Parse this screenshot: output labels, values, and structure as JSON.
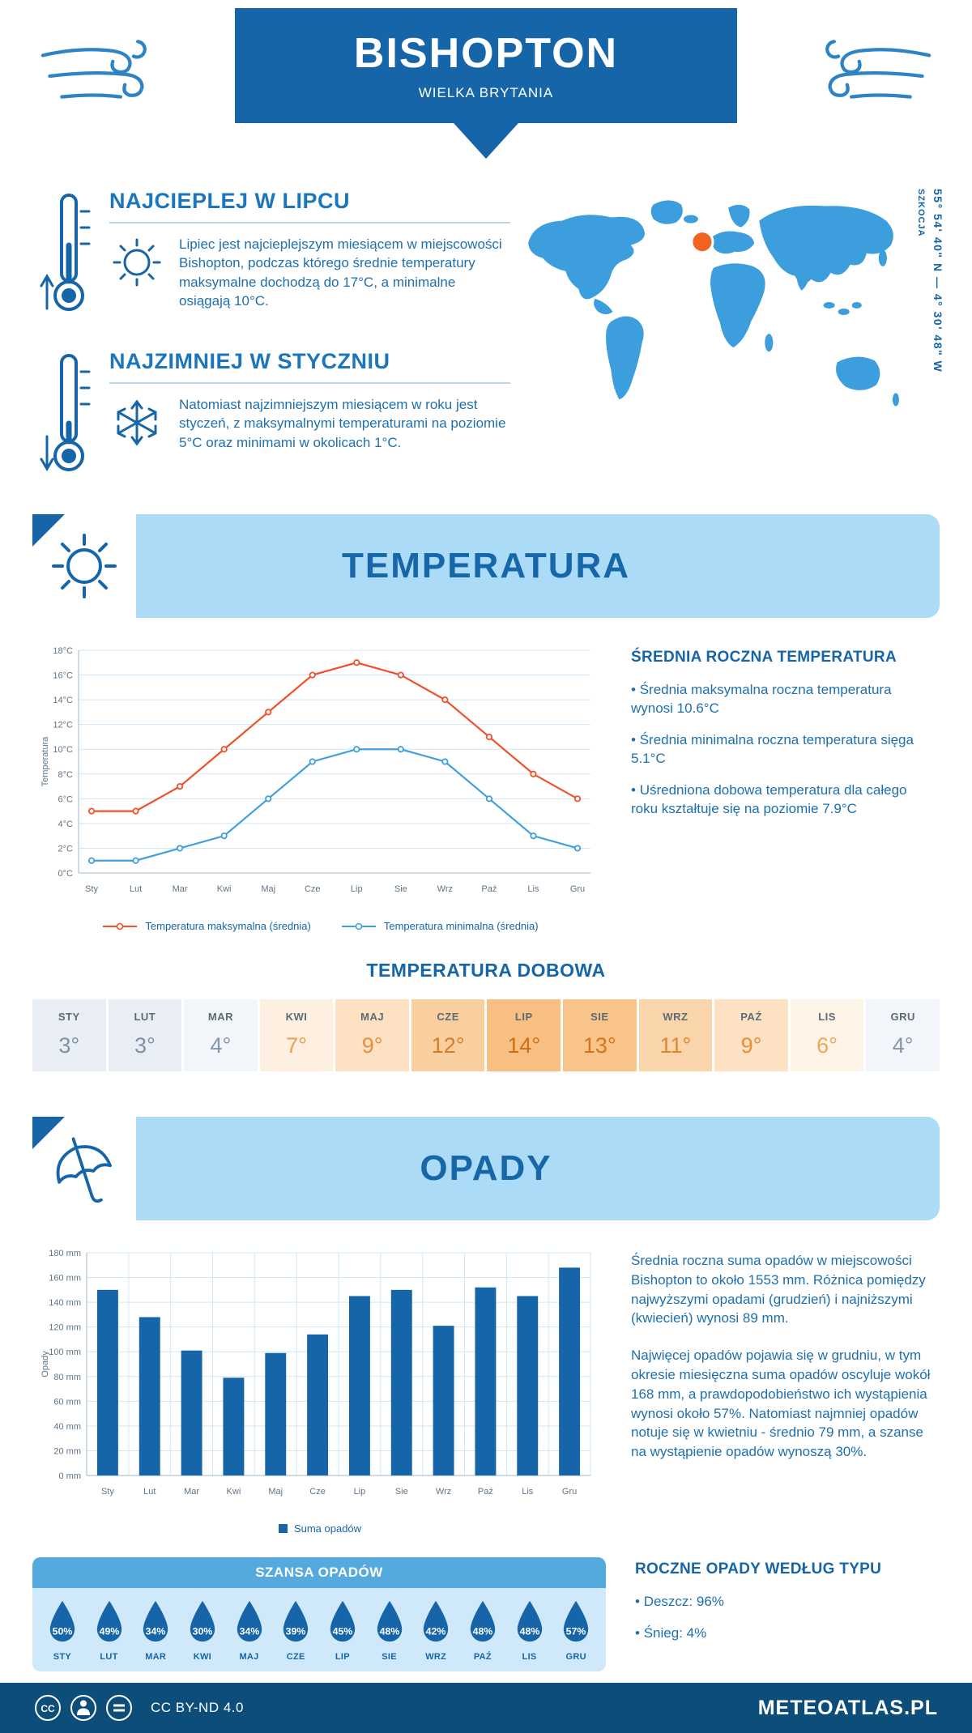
{
  "header": {
    "title": "BISHOPTON",
    "subtitle": "WIELKA BRYTANIA"
  },
  "icons": {
    "wind": "wind-swirl",
    "thermometer_warm": "thermometer-up-arrow",
    "thermometer_cold": "thermometer-down-arrow",
    "sun": "sun-rays",
    "snowflake": "snowflake",
    "umbrella": "umbrella",
    "drop": "water-drop",
    "cc": "creative-commons",
    "attribution": "person",
    "nd": "equals-no-derivatives",
    "marker": "map-location-dot"
  },
  "colors": {
    "primary": "#1565a8",
    "banner_light": "#abdbf7",
    "chance_header": "#54aade",
    "chance_bg": "#cfe9fb",
    "footer_bg": "#0d4d79",
    "map_blue": "#3d9edd",
    "marker_orange": "#f26322",
    "max_line": "#f0512a",
    "min_line": "#41a0dc",
    "bar": "#1565a8",
    "text_blue": "#1e6fae",
    "grid": "#cfe7f8"
  },
  "intro": {
    "blocks": [
      {
        "heading": "NAJCIEPLEJ W LIPCU",
        "text": "Lipiec jest najcieplejszym miesiącem w miejscowości Bishopton, podczas którego średnie temperatury maksymalne dochodzą do 17°C, a minimalne osiągają 10°C."
      },
      {
        "heading": "NAJZIMNIEJ W STYCZNIU",
        "text": "Natomiast najzimniejszym miesiącem w roku jest styczeń, z maksymalnymi temperaturami na poziomie 5°C oraz minimami w okolicach 1°C."
      }
    ],
    "map": {
      "region_label": "SZKOCJA",
      "coordinates": "55° 54' 40\" N — 4° 30' 48\" W",
      "map_color": "#3d9edd",
      "marker_color": "#f26322"
    }
  },
  "sections": {
    "temperature": {
      "banner": "TEMPERATURA"
    },
    "daily": {
      "title": "TEMPERATURA DOBOWA"
    },
    "precipitation": {
      "banner": "OPADY"
    },
    "chance": {
      "title": "SZANSA OPADÓW"
    },
    "type": {
      "title": "ROCZNE OPADY WEDŁUG TYPU",
      "bullets": [
        "Deszcz: 96%",
        "Śnieg: 4%"
      ]
    }
  },
  "temperature_summary": {
    "heading": "ŚREDNIA ROCZNA TEMPERATURA",
    "bullets": [
      "Średnia maksymalna roczna temperatura wynosi 10.6°C",
      "Średnia minimalna roczna temperatura sięga 5.1°C",
      "Uśredniona dobowa temperatura dla całego roku kształtuje się na poziomie 7.9°C"
    ]
  },
  "precipitation_summary": {
    "paragraphs": [
      "Średnia roczna suma opadów w miejscowości Bishopton to około 1553 mm. Różnica pomiędzy najwyższymi opadami (grudzień) i najniższymi (kwiecień) wynosi 89 mm.",
      "Najwięcej opadów pojawia się w grudniu, w tym okresie miesięczna suma opadów oscyluje wokół 168 mm, a prawdopodobieństwo ich wystąpienia wynosi około 57%. Natomiast najmniej opadów notuje się w kwietniu - średnio 79 mm, a szanse na wystąpienie opadów wynoszą 30%."
    ]
  },
  "daily_table": {
    "months": [
      "STY",
      "LUT",
      "MAR",
      "KWI",
      "MAJ",
      "CZE",
      "LIP",
      "SIE",
      "WRZ",
      "PAŹ",
      "LIS",
      "GRU"
    ],
    "values": [
      "3°",
      "3°",
      "4°",
      "7°",
      "9°",
      "12°",
      "14°",
      "13°",
      "11°",
      "9°",
      "6°",
      "4°"
    ],
    "cell_bg": [
      "#e9eef5",
      "#e9eef5",
      "#f2f5f9",
      "#fdf0e0",
      "#fce2c2",
      "#f9cf9f",
      "#f7bf81",
      "#f8c489",
      "#fad4ab",
      "#fce2c2",
      "#fdf3e6",
      "#f2f5f9"
    ],
    "cell_fg": [
      "#7d91a8",
      "#7d91a8",
      "#8497ac",
      "#ec9d4d",
      "#e68e39",
      "#d97c24",
      "#d06e16",
      "#d4741c",
      "#df8630",
      "#e68e39",
      "#efa65c",
      "#8497ac"
    ]
  },
  "chance": {
    "months": [
      "STY",
      "LUT",
      "MAR",
      "KWI",
      "MAJ",
      "CZE",
      "LIP",
      "SIE",
      "WRZ",
      "PAŹ",
      "LIS",
      "GRU"
    ],
    "values": [
      "50%",
      "49%",
      "34%",
      "30%",
      "34%",
      "39%",
      "45%",
      "48%",
      "42%",
      "48%",
      "48%",
      "57%"
    ]
  },
  "chart_data": [
    {
      "type": "line",
      "title": "TEMPERATURA",
      "categories": [
        "Sty",
        "Lut",
        "Mar",
        "Kwi",
        "Maj",
        "Cze",
        "Lip",
        "Sie",
        "Wrz",
        "Paź",
        "Lis",
        "Gru"
      ],
      "series": [
        {
          "name": "Temperatura maksymalna (średnia)",
          "color": "#f0512a",
          "values": [
            5,
            5,
            7,
            10,
            13,
            16,
            17,
            16,
            14,
            11,
            8,
            6
          ]
        },
        {
          "name": "Temperatura minimalna (średnia)",
          "color": "#41a0dc",
          "values": [
            1,
            1,
            2,
            3,
            6,
            9,
            10,
            10,
            9,
            6,
            3,
            2
          ]
        }
      ],
      "xlabel": "",
      "ylabel": "Temperatura",
      "ylim": [
        0,
        18
      ],
      "ystep": 2,
      "yunit": "°C",
      "grid": true,
      "legend_position": "bottom"
    },
    {
      "type": "bar",
      "title": "OPADY",
      "categories": [
        "Sty",
        "Lut",
        "Mar",
        "Kwi",
        "Maj",
        "Cze",
        "Lip",
        "Sie",
        "Wrz",
        "Paź",
        "Lis",
        "Gru"
      ],
      "series": [
        {
          "name": "Suma opadów",
          "color": "#1565a8",
          "values": [
            150,
            128,
            101,
            79,
            99,
            114,
            145,
            150,
            121,
            152,
            145,
            168
          ]
        }
      ],
      "xlabel": "",
      "ylabel": "Opady",
      "ylim": [
        0,
        180
      ],
      "ystep": 20,
      "yunit": " mm",
      "grid": true,
      "legend_position": "bottom"
    }
  ],
  "footer": {
    "license": "CC BY-ND 4.0",
    "brand": "METEOATLAS.PL"
  }
}
